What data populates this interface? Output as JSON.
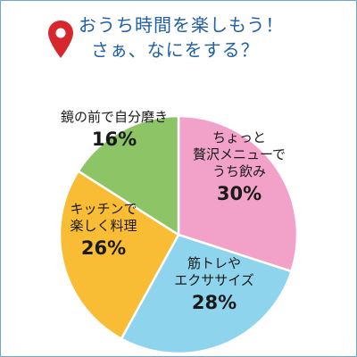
{
  "header": {
    "title_line1": "おうち時間を楽しもう！",
    "title_line2": "さぁ、なにをする？",
    "pin_icon": "map-pin-icon",
    "title_color": "#1f5fa8",
    "pin_color": "#d8262d"
  },
  "chart_data": {
    "type": "pie",
    "start_angle_deg": 0,
    "direction": "clockwise",
    "slices": [
      {
        "label_lines": [
          "ちょっと",
          "贅沢メニューで",
          "うち飲み"
        ],
        "value": 30,
        "value_label": "30%",
        "color": "#f2a2c8"
      },
      {
        "label_lines": [
          "筋トレや",
          "エクササイズ"
        ],
        "value": 28,
        "value_label": "28%",
        "color": "#8ed4ec"
      },
      {
        "label_lines": [
          "キッチンで",
          "楽しく料理"
        ],
        "value": 26,
        "value_label": "26%",
        "color": "#f8bd34"
      },
      {
        "label_lines": [
          "鏡の前で自分磨き"
        ],
        "value": 16,
        "value_label": "16%",
        "color": "#8cc466"
      }
    ]
  }
}
